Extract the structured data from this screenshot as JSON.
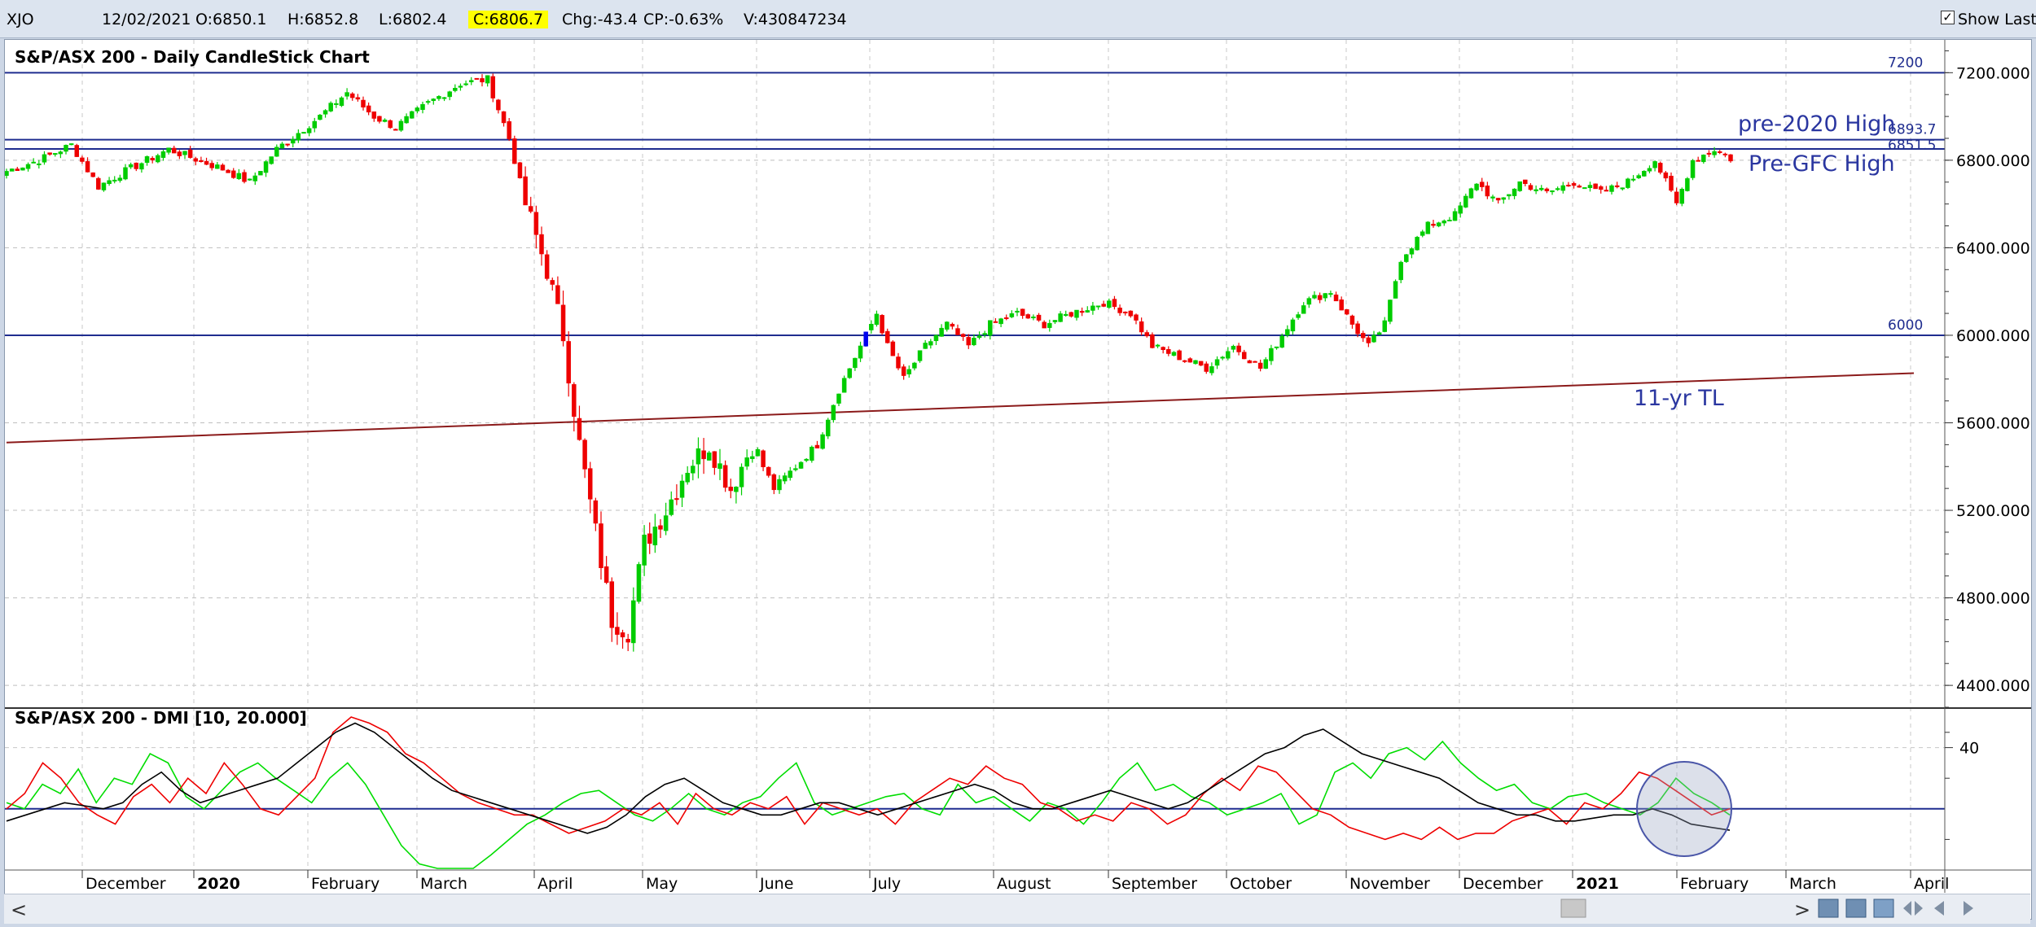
{
  "header": {
    "symbol": "XJO",
    "date": "12/02/2021",
    "open": "O:6850.1",
    "high": "H:6852.8",
    "low": "L:6802.4",
    "close": "C:6806.7",
    "change": "Chg:-43.4",
    "change_pct": "CP:-0.63%",
    "volume": "V:430847234",
    "show_last_label": "Show Last",
    "show_last_checked": true
  },
  "chart_data": [
    {
      "type": "candlestick",
      "title": "S&P/ASX 200 - Daily CandleStick Chart",
      "ylim": [
        4300,
        7350
      ],
      "y_ticks": [
        "7200.000",
        "6800.000",
        "6400.000",
        "6000.000",
        "5600.000",
        "5200.000",
        "4800.000",
        "4400.000"
      ],
      "x_ticks": [
        "December",
        "2020",
        "February",
        "March",
        "April",
        "May",
        "June",
        "July",
        "August",
        "September",
        "October",
        "November",
        "December",
        "2021",
        "February",
        "March",
        "April"
      ],
      "colors": {
        "up": "#00cc00",
        "down": "#ee0000",
        "highlight": "#0000ee",
        "hline": "#1f2d8f",
        "trendline": "#8b1a1a",
        "annotation": "#2a36a0"
      },
      "approx_close_path": [
        [
          0,
          6750
        ],
        [
          6,
          6800
        ],
        [
          12,
          6870
        ],
        [
          17,
          6680
        ],
        [
          22,
          6750
        ],
        [
          30,
          6850
        ],
        [
          40,
          6760
        ],
        [
          45,
          6700
        ],
        [
          50,
          6850
        ],
        [
          58,
          7000
        ],
        [
          63,
          7110
        ],
        [
          68,
          7000
        ],
        [
          72,
          6950
        ],
        [
          78,
          7060
        ],
        [
          84,
          7150
        ],
        [
          89,
          7170
        ],
        [
          93,
          6900
        ],
        [
          96,
          6600
        ],
        [
          100,
          6300
        ],
        [
          103,
          6000
        ],
        [
          106,
          5500
        ],
        [
          109,
          5100
        ],
        [
          112,
          4700
        ],
        [
          115,
          4650
        ],
        [
          118,
          5050
        ],
        [
          122,
          5200
        ],
        [
          126,
          5400
        ],
        [
          130,
          5500
        ],
        [
          134,
          5300
        ],
        [
          138,
          5500
        ],
        [
          142,
          5300
        ],
        [
          146,
          5400
        ],
        [
          150,
          5500
        ],
        [
          154,
          5750
        ],
        [
          158,
          5950
        ],
        [
          161,
          6100
        ],
        [
          163,
          5950
        ],
        [
          166,
          5800
        ],
        [
          170,
          5950
        ],
        [
          174,
          6050
        ],
        [
          178,
          5950
        ],
        [
          182,
          6050
        ],
        [
          187,
          6100
        ],
        [
          192,
          6050
        ],
        [
          197,
          6100
        ],
        [
          203,
          6150
        ],
        [
          208,
          6100
        ],
        [
          212,
          5950
        ],
        [
          217,
          5900
        ],
        [
          222,
          5850
        ],
        [
          227,
          5950
        ],
        [
          232,
          5850
        ],
        [
          236,
          6000
        ],
        [
          240,
          6150
        ],
        [
          245,
          6200
        ],
        [
          249,
          6050
        ],
        [
          252,
          5950
        ],
        [
          255,
          6050
        ],
        [
          258,
          6350
        ],
        [
          263,
          6500
        ],
        [
          268,
          6550
        ],
        [
          272,
          6700
        ],
        [
          276,
          6600
        ],
        [
          280,
          6700
        ],
        [
          285,
          6650
        ],
        [
          290,
          6700
        ],
        [
          295,
          6650
        ],
        [
          300,
          6700
        ],
        [
          305,
          6800
        ],
        [
          309,
          6600
        ],
        [
          312,
          6800
        ],
        [
          316,
          6850
        ],
        [
          319,
          6807
        ]
      ],
      "horizontal_lines": [
        {
          "label": "7200",
          "value": 7200
        },
        {
          "label": "6893.7",
          "value": 6893.7
        },
        {
          "label": "6851.5",
          "value": 6851.5
        },
        {
          "label": "6000",
          "value": 6000
        }
      ],
      "trendline": {
        "label": "11-yr TL",
        "from": [
          0,
          5510
        ],
        "to": [
          319,
          5815
        ]
      },
      "annotations": [
        "pre-2020 High",
        "Pre-GFC High",
        "11-yr TL"
      ]
    },
    {
      "type": "line",
      "title": "S&P/ASX 200 - DMI [10, 20.000]",
      "ylim": [
        0,
        50
      ],
      "y_ticks": [
        "40"
      ],
      "reference_line": 20,
      "series": [
        {
          "color": "#00dd00",
          "values": [
            22,
            20,
            28,
            25,
            33,
            22,
            30,
            28,
            38,
            35,
            24,
            20,
            26,
            32,
            35,
            30,
            26,
            22,
            30,
            35,
            28,
            18,
            8,
            2,
            0,
            0,
            0,
            5,
            10,
            15,
            18,
            22,
            25,
            26,
            22,
            18,
            16,
            20,
            25,
            20,
            18,
            22,
            24,
            30,
            35,
            22,
            18,
            20,
            22,
            24,
            25,
            20,
            18,
            28,
            22,
            24,
            20,
            16,
            22,
            20,
            15,
            22,
            30,
            35,
            26,
            28,
            24,
            22,
            18,
            20,
            22,
            25,
            15,
            18,
            32,
            35,
            30,
            38,
            40,
            36,
            42,
            35,
            30,
            26,
            28,
            22,
            20,
            24,
            25,
            22,
            20,
            18,
            22,
            30,
            25,
            22,
            18
          ]
        },
        {
          "color": "#ee0000",
          "values": [
            20,
            25,
            35,
            30,
            22,
            18,
            15,
            24,
            28,
            22,
            30,
            25,
            35,
            28,
            20,
            18,
            24,
            30,
            45,
            50,
            48,
            45,
            38,
            35,
            30,
            25,
            22,
            20,
            18,
            18,
            15,
            12,
            14,
            16,
            20,
            18,
            22,
            15,
            25,
            20,
            18,
            22,
            20,
            24,
            15,
            22,
            20,
            18,
            20,
            15,
            22,
            26,
            30,
            28,
            34,
            30,
            28,
            22,
            20,
            16,
            18,
            16,
            22,
            20,
            15,
            18,
            25,
            30,
            26,
            34,
            32,
            26,
            20,
            18,
            14,
            12,
            10,
            12,
            10,
            14,
            10,
            12,
            12,
            16,
            18,
            20,
            15,
            22,
            20,
            25,
            32,
            30,
            26,
            22,
            18,
            20
          ]
        },
        {
          "color": "#000000",
          "values": [
            16,
            18,
            20,
            22,
            21,
            20,
            22,
            28,
            32,
            26,
            22,
            24,
            26,
            28,
            30,
            35,
            40,
            45,
            48,
            45,
            40,
            35,
            30,
            26,
            24,
            22,
            20,
            18,
            16,
            14,
            12,
            14,
            18,
            24,
            28,
            30,
            26,
            22,
            20,
            18,
            18,
            20,
            22,
            22,
            20,
            18,
            20,
            22,
            24,
            26,
            28,
            26,
            22,
            20,
            20,
            22,
            24,
            26,
            24,
            22,
            20,
            22,
            26,
            30,
            34,
            38,
            40,
            44,
            46,
            42,
            38,
            36,
            34,
            32,
            30,
            26,
            22,
            20,
            18,
            18,
            16,
            16,
            17,
            18,
            18,
            20,
            18,
            15,
            14,
            13
          ]
        }
      ]
    }
  ],
  "annotation_circle": "highlight",
  "nav": {
    "left_arrow": "<",
    "right_arrow": ">"
  }
}
